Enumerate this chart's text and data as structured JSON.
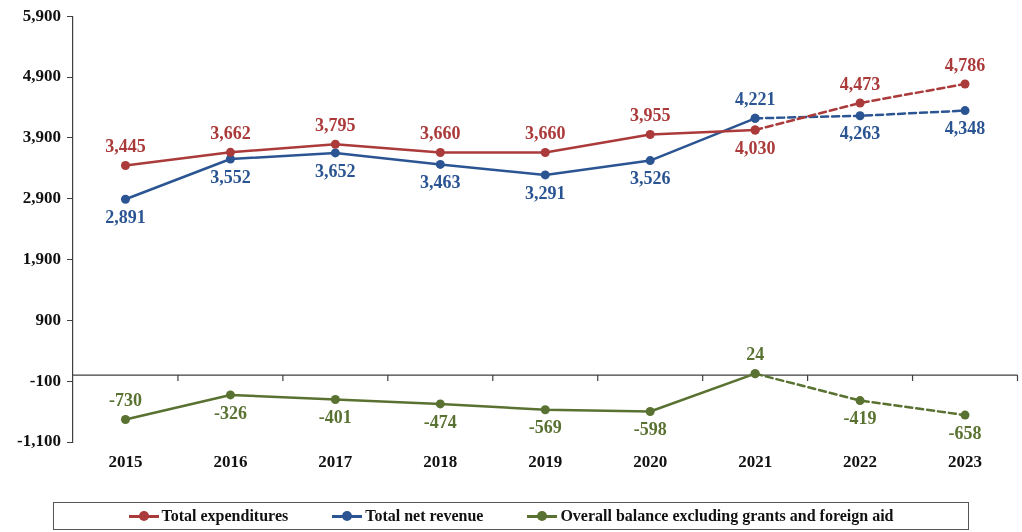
{
  "chart_data": {
    "type": "line",
    "categories": [
      "2015",
      "2016",
      "2017",
      "2018",
      "2019",
      "2020",
      "2021",
      "2022",
      "2023"
    ],
    "ylim": [
      -1100,
      5900
    ],
    "yticks": [
      {
        "value": -1100,
        "label": "-1,100"
      },
      {
        "value": -100,
        "label": "-100"
      },
      {
        "value": 900,
        "label": "900"
      },
      {
        "value": 1900,
        "label": "1,900"
      },
      {
        "value": 2900,
        "label": "2,900"
      },
      {
        "value": 3900,
        "label": "3,900"
      },
      {
        "value": 4900,
        "label": "4,900"
      },
      {
        "value": 5900,
        "label": "5,900"
      }
    ],
    "marker": "circle",
    "line_style": "solid",
    "legend": "bottom",
    "ref_lines": [
      {
        "axis": "y",
        "value": 0,
        "color": "#404040"
      }
    ],
    "series": [
      {
        "name": "Total expenditures",
        "color": "#ab3a3a",
        "values": [
          3445,
          3662,
          3795,
          3660,
          3660,
          3955,
          4030,
          null,
          null
        ],
        "value_labels": [
          "3,445",
          "3,662",
          "3,795",
          "3,660",
          "3,660",
          "3,955",
          "4,030",
          null,
          null
        ]
      },
      {
        "color": "#ab3a3a",
        "line_style": "dashed",
        "values": [
          null,
          null,
          null,
          null,
          null,
          null,
          4030,
          4473,
          4786
        ],
        "value_labels": [
          null,
          null,
          null,
          null,
          null,
          null,
          null,
          "4,473",
          "4,786"
        ]
      },
      {
        "name": "Total net revenue",
        "color": "#2b5592",
        "values": [
          2891,
          3552,
          3652,
          3463,
          3291,
          3526,
          4221,
          null,
          null
        ],
        "value_labels": [
          "2,891",
          "3,552",
          "3,652",
          "3,463",
          "3,291",
          "3,526",
          "4,221",
          null,
          null
        ]
      },
      {
        "color": "#2b5592",
        "line_style": "dashed",
        "values": [
          null,
          null,
          null,
          null,
          null,
          null,
          4221,
          4263,
          4348
        ],
        "value_labels": [
          null,
          null,
          null,
          null,
          null,
          null,
          null,
          "4,263",
          "4,348"
        ]
      },
      {
        "name": "Overall balance excluding grants and foreign aid",
        "color": "#5a7231",
        "values": [
          -730,
          -326,
          -401,
          -474,
          -569,
          -598,
          24,
          null,
          null
        ],
        "value_labels": [
          "-730",
          "-326",
          "-401",
          "-474",
          "-569",
          "-598",
          "24",
          null,
          null
        ]
      },
      {
        "color": "#5a7231",
        "line_style": "dashed",
        "values": [
          null,
          null,
          null,
          null,
          null,
          null,
          24,
          -419,
          -658
        ],
        "value_labels": [
          null,
          null,
          null,
          null,
          null,
          null,
          null,
          "-419",
          "-658"
        ]
      }
    ]
  }
}
